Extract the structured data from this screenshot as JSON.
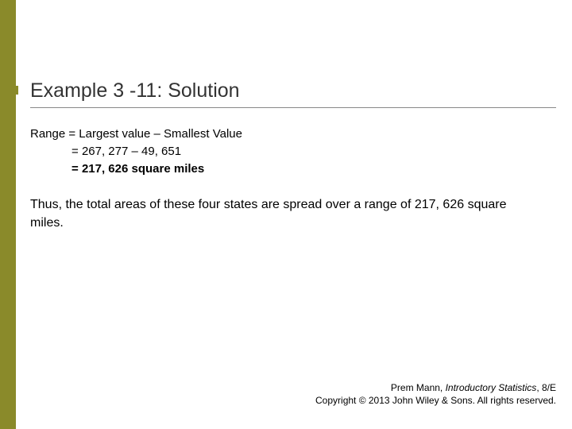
{
  "accent_color": "#8a8a2a",
  "title": "Example 3 -11: Solution",
  "calc": {
    "label": "Range",
    "line1_lhs": "Range = ",
    "line1_rhs": "Largest value – Smallest Value",
    "line2_lhs": "= ",
    "line2_rhs": "267, 277 – 49, 651",
    "line3_lhs": "= ",
    "line3_rhs": "217, 626 square miles"
  },
  "explanation": "Thus, the total areas of these four states are spread over a range of 217, 626 square miles.",
  "footer": {
    "author": "Prem Mann, ",
    "book": "Introductory Statistics",
    "edition": ", 8/E",
    "copyright": "Copyright © 2013 John Wiley & Sons. All rights reserved."
  }
}
